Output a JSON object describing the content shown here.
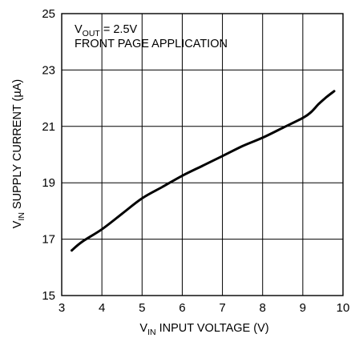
{
  "chart_data": {
    "type": "line",
    "xlim": [
      3,
      10
    ],
    "ylim": [
      15,
      25
    ],
    "xticks": [
      "3",
      "4",
      "5",
      "6",
      "7",
      "8",
      "9",
      "10"
    ],
    "yticks": [
      "15",
      "17",
      "19",
      "21",
      "23",
      "25"
    ],
    "xlabel": {
      "main": "V",
      "sub": "IN",
      "rest": " INPUT VOLTAGE (V)"
    },
    "ylabel": {
      "main": "V",
      "sub": "IN",
      "rest": " SUPPLY CURRENT (µA)"
    },
    "annotation": {
      "line1_main": "V",
      "line1_sub": "OUT",
      "line1_rest": " = 2.5V",
      "line2": "FRONT PAGE APPLICATION"
    },
    "grid": true,
    "series": [
      {
        "x": [
          3.25,
          3.5,
          4.0,
          4.5,
          5.0,
          5.5,
          6.0,
          6.5,
          7.0,
          7.5,
          8.0,
          8.5,
          9.0,
          9.2,
          9.4,
          9.6,
          9.78
        ],
        "y": [
          16.6,
          16.9,
          17.35,
          17.9,
          18.45,
          18.85,
          19.25,
          19.6,
          19.95,
          20.3,
          20.6,
          20.95,
          21.3,
          21.5,
          21.8,
          22.05,
          22.25
        ]
      }
    ]
  }
}
